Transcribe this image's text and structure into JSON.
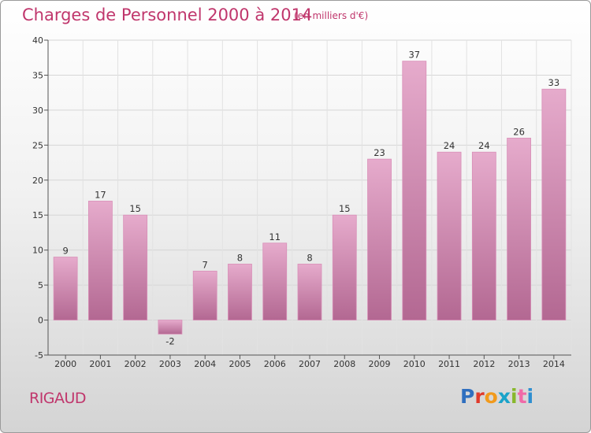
{
  "header": {
    "title": "Charges de Personnel 2000 à 2014",
    "subtitle": "(en milliers d'€)"
  },
  "footer": {
    "place": "RIGAUD",
    "logo_text": "Proxiti"
  },
  "colors": {
    "title": "#c0366c",
    "bar_light": "#e6abcc",
    "bar_dark": "#b36892",
    "logo_letters": [
      "#2f6fbf",
      "#e03a2b",
      "#f19a1c",
      "#1aa3c9",
      "#88b82b",
      "#f06aa8",
      "#2f8fd0"
    ]
  },
  "chart_data": {
    "type": "bar",
    "title": "Charges de Personnel 2000 à 2014",
    "subtitle": "(en milliers d'€)",
    "categories": [
      "2000",
      "2001",
      "2002",
      "2003",
      "2004",
      "2005",
      "2006",
      "2007",
      "2008",
      "2009",
      "2010",
      "2011",
      "2012",
      "2013",
      "2014"
    ],
    "values": [
      9,
      17,
      15,
      -2,
      7,
      8,
      11,
      8,
      15,
      23,
      37,
      24,
      24,
      26,
      33
    ],
    "ylim": [
      -5,
      40
    ],
    "yticks": [
      -5,
      0,
      5,
      10,
      15,
      20,
      25,
      30,
      35,
      40
    ],
    "grid": true,
    "legend": false
  }
}
